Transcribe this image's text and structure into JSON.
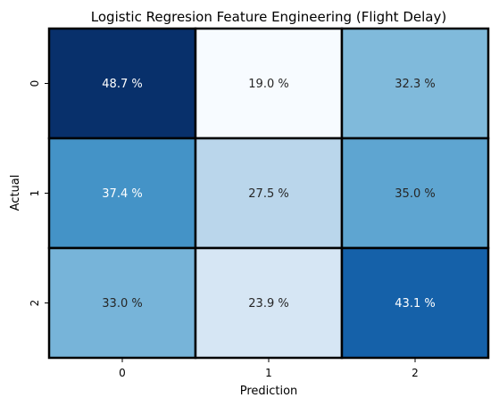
{
  "chart_data": {
    "type": "heatmap",
    "title": "Logistic Regresion Feature Engineering (Flight Delay)",
    "xlabel": "Prediction",
    "ylabel": "Actual",
    "x_categories": [
      "0",
      "1",
      "2"
    ],
    "y_categories": [
      "0",
      "1",
      "2"
    ],
    "values": [
      [
        48.7,
        19.0,
        32.3
      ],
      [
        37.4,
        27.5,
        35.0
      ],
      [
        33.0,
        23.9,
        43.1
      ]
    ],
    "cell_labels": [
      [
        "48.7 %",
        "19.0 %",
        "32.3 %"
      ],
      [
        "37.4 %",
        "27.5 %",
        "35.0 %"
      ],
      [
        "33.0 %",
        "23.9 %",
        "43.1 %"
      ]
    ],
    "colormap": "Blues",
    "color_range": [
      19.0,
      48.7
    ],
    "colorbar": false,
    "cell_border_color": "#000000"
  }
}
